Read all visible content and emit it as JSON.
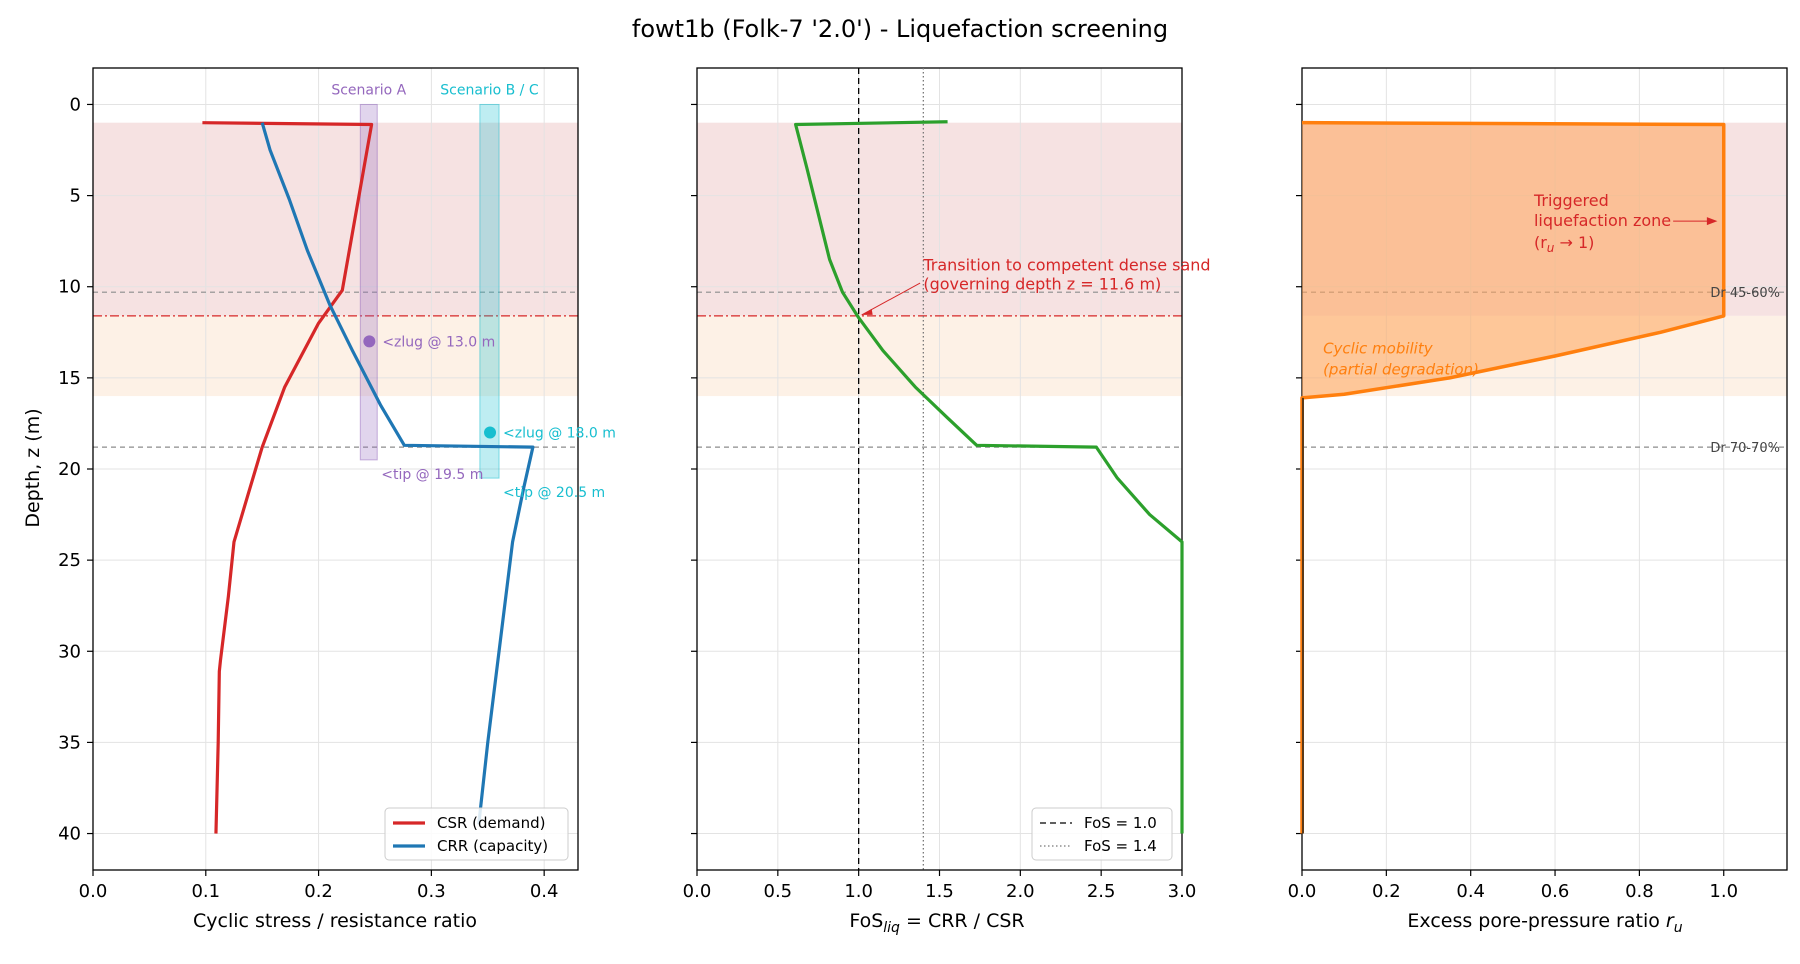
{
  "chart_data": [
    {
      "type": "line",
      "title": "fowt1b (Folk-7 '2.0') - Liquefaction screening",
      "xlabel": "Cyclic stress / resistance ratio",
      "ylabel": "Depth, z (m)",
      "xlim": [
        0.0,
        0.43
      ],
      "ylim": [
        42,
        -2
      ],
      "xticks": [
        "0.0",
        "0.1",
        "0.2",
        "0.3",
        "0.4"
      ],
      "yticks": [
        "0",
        "5",
        "10",
        "15",
        "20",
        "25",
        "30",
        "35",
        "40"
      ],
      "grid": true,
      "legend_position": "lower-right",
      "series": [
        {
          "name": "CSR (demand)",
          "color": "#d62728",
          "points": [
            [
              0.097,
              1.0
            ],
            [
              0.247,
              1.1
            ],
            [
              0.243,
              2.5
            ],
            [
              0.233,
              6.0
            ],
            [
              0.221,
              10.2
            ],
            [
              0.2,
              12.0
            ],
            [
              0.17,
              15.5
            ],
            [
              0.15,
              18.8
            ],
            [
              0.137,
              21.5
            ],
            [
              0.125,
              24.0
            ],
            [
              0.12,
              27.0
            ],
            [
              0.113,
              30.5
            ],
            [
              0.112,
              31.1
            ],
            [
              0.111,
              35.0
            ],
            [
              0.109,
              40.0
            ]
          ]
        },
        {
          "name": "CRR (capacity)",
          "color": "#1f77b4",
          "points": [
            [
              0.15,
              1.0
            ],
            [
              0.157,
              2.5
            ],
            [
              0.174,
              5.2
            ],
            [
              0.19,
              8.0
            ],
            [
              0.21,
              11.0
            ],
            [
              0.23,
              13.5
            ],
            [
              0.255,
              16.5
            ],
            [
              0.276,
              18.7
            ],
            [
              0.39,
              18.8
            ],
            [
              0.382,
              21.0
            ],
            [
              0.372,
              24.0
            ],
            [
              0.36,
              30.0
            ],
            [
              0.35,
              35.0
            ],
            [
              0.342,
              39.5
            ]
          ]
        }
      ],
      "scenarios": [
        {
          "label": "Scenario A",
          "color": "#9467bd",
          "x_range": [
            0.237,
            0.252
          ],
          "depth_range": [
            0.0,
            19.5
          ],
          "zlug": {
            "x": 0.245,
            "depth": 13.0,
            "label": "<zlug @ 13.0 m"
          },
          "tip_label": "<tip @ 19.5 m"
        },
        {
          "label": "Scenario B / C",
          "color": "#17becf",
          "x_range": [
            0.343,
            0.36
          ],
          "depth_range": [
            0.0,
            20.5
          ],
          "zlug": {
            "x": 0.352,
            "depth": 18.0,
            "label": "<zlug @ 18.0 m"
          },
          "tip_label": "<tip @ 20.5 m"
        }
      ]
    },
    {
      "type": "line",
      "xlabel_main": "FoS",
      "xlabel_sub": "liq",
      "xlabel_rest": " = CRR / CSR",
      "xlim": [
        0.0,
        3.0
      ],
      "xticks": [
        "0.0",
        "0.5",
        "1.0",
        "1.5",
        "2.0",
        "2.5",
        "3.0"
      ],
      "ylim": [
        42,
        -2
      ],
      "grid": true,
      "legend_position": "lower-right",
      "series": [
        {
          "name": "FoS",
          "color": "#2ca02c",
          "points": [
            [
              1.55,
              0.95
            ],
            [
              0.61,
              1.1
            ],
            [
              0.68,
              3.5
            ],
            [
              0.75,
              6.0
            ],
            [
              0.82,
              8.5
            ],
            [
              0.9,
              10.3
            ],
            [
              1.0,
              11.7
            ],
            [
              1.15,
              13.5
            ],
            [
              1.35,
              15.5
            ],
            [
              1.55,
              17.2
            ],
            [
              1.73,
              18.7
            ],
            [
              2.47,
              18.8
            ],
            [
              2.6,
              20.5
            ],
            [
              2.8,
              22.5
            ],
            [
              3.0,
              24.0
            ],
            [
              3.0,
              40.0
            ]
          ]
        }
      ],
      "reference_lines": [
        {
          "label": "FoS = 1.0",
          "x": 1.0,
          "style": "dashed"
        },
        {
          "label": "FoS = 1.4",
          "x": 1.4,
          "style": "dotted"
        }
      ],
      "annotation": {
        "line1": "Transition to competent dense sand",
        "line2": "(governing depth z = 11.6 m)",
        "target_x": 1.0,
        "target_depth": 11.6
      }
    },
    {
      "type": "area",
      "xlabel": "Excess pore-pressure ratio ",
      "xlabel_symbol": "r",
      "xlabel_sub": "u",
      "xlim": [
        0.0,
        1.15
      ],
      "xticks": [
        "0.0",
        "0.2",
        "0.4",
        "0.6",
        "0.8",
        "1.0"
      ],
      "ylim": [
        42,
        -2
      ],
      "grid": true,
      "series": [
        {
          "name": "r_u",
          "color": "#ff7f0e",
          "points": [
            [
              0.0,
              1.0
            ],
            [
              1.0,
              1.1
            ],
            [
              1.0,
              11.6
            ],
            [
              0.85,
              12.5
            ],
            [
              0.6,
              13.8
            ],
            [
              0.35,
              15.0
            ],
            [
              0.1,
              15.9
            ],
            [
              0.0,
              16.1
            ],
            [
              0.0,
              40.0
            ]
          ]
        }
      ],
      "layer_labels": [
        {
          "label": "Dr 45-60%",
          "depth": 10.3
        },
        {
          "label": "Dr 70-70%",
          "depth": 18.8
        }
      ],
      "annotations": {
        "triggered_line1": "Triggered",
        "triggered_line2": "liquefaction zone",
        "triggered_line3": "(r",
        "triggered_sub": "u",
        "triggered_line3b": " → 1)",
        "cyclic_line1": "Cyclic mobility",
        "cyclic_line2": "(partial degradation)"
      }
    }
  ],
  "shared": {
    "liquefied_zone_depth": [
      1.0,
      11.6
    ],
    "transition_zone_depth": [
      11.6,
      16.0
    ],
    "layer_boundaries": [
      10.3,
      18.8
    ],
    "governing_depth": 11.6,
    "colors": {
      "liquefied_zone": "#f6e2e2",
      "transition_zone": "#fdf1e6",
      "grid": "#e3e3e3",
      "governing_line": "#d62728"
    }
  }
}
